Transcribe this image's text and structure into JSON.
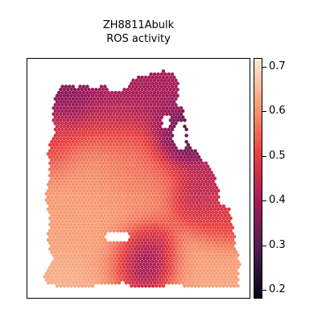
{
  "chart_data": {
    "type": "heatmap",
    "title": "ZH8811Abulk",
    "subtitle": "ROS activity",
    "xlabel": "",
    "ylabel": "",
    "colorbar": {
      "range": [
        0.18,
        0.72
      ],
      "ticks": [
        0.2,
        0.3,
        0.4,
        0.5,
        0.6,
        0.7
      ],
      "tick_labels": [
        "0.2",
        "0.3",
        "0.4",
        "0.5",
        "0.6",
        "0.7"
      ],
      "colormap": "rocket",
      "color_stops": [
        "#03051a",
        "#4c1d4b",
        "#a11a5b",
        "#e83f3f",
        "#f69c73",
        "#faebdd"
      ]
    },
    "regions": [
      {
        "name": "top-left-core",
        "approx_value": 0.38
      },
      {
        "name": "upper-left-ridge",
        "approx_value": 0.33
      },
      {
        "name": "upper-right-lobe",
        "approx_value": 0.4
      },
      {
        "name": "right-upper-edge",
        "approx_value": 0.28
      },
      {
        "name": "right-mid-edge",
        "approx_value": 0.42
      },
      {
        "name": "left-upper-margin",
        "approx_value": 0.47
      },
      {
        "name": "central-left-mass",
        "approx_value": 0.6
      },
      {
        "name": "central-mid",
        "approx_value": 0.54
      },
      {
        "name": "lower-left-lobe",
        "approx_value": 0.62
      },
      {
        "name": "central-channel",
        "approx_value": 0.3
      },
      {
        "name": "lower-right-lobe",
        "approx_value": 0.62
      },
      {
        "name": "right-mid-bulge",
        "approx_value": 0.5
      },
      {
        "name": "bottom-left-islet",
        "approx_value": 0.64
      }
    ],
    "grid": false,
    "legend": "colorbar-right"
  }
}
